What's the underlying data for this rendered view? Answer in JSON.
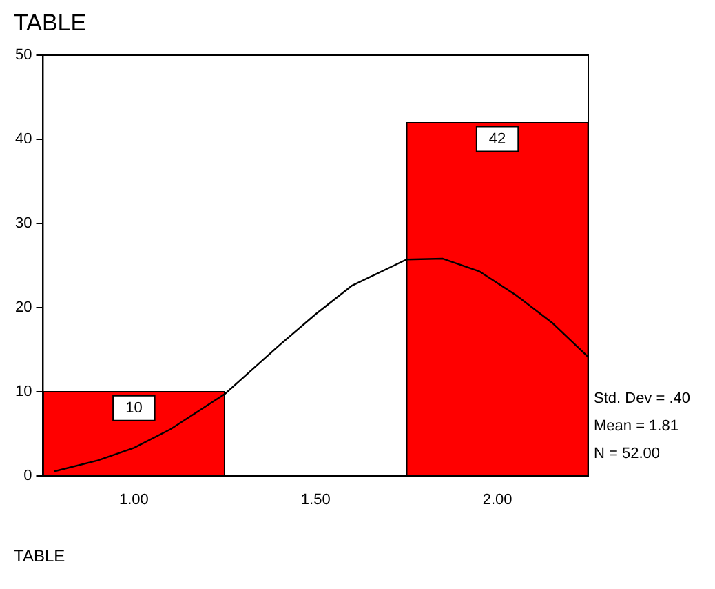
{
  "chart_data": {
    "type": "histogram",
    "title": "TABLE",
    "xlabel": "TABLE",
    "bins": [
      0.75,
      1.25,
      1.75,
      2.25
    ],
    "values": [
      10,
      0,
      42
    ],
    "color": "#ff0000",
    "value_labels": [
      "10",
      null,
      "42"
    ],
    "series": [
      {
        "type": "line",
        "x": [
          0.78,
          0.9,
          1.0,
          1.1,
          1.25,
          1.4,
          1.5,
          1.6,
          1.75,
          1.85,
          1.95,
          2.05,
          2.15,
          2.25
        ],
        "values": [
          0.5,
          1.8,
          3.3,
          5.5,
          9.7,
          15.5,
          19.2,
          22.6,
          25.7,
          25.8,
          24.3,
          21.5,
          18.2,
          14.1
        ],
        "color": "#000000"
      }
    ],
    "annotations": [
      "Std. Dev = .40",
      "Mean = 1.81",
      "N = 52.00"
    ],
    "xlim": [
      0.75,
      2.25
    ],
    "xticks": [
      {
        "value": 1,
        "label": "1.00"
      },
      {
        "value": 1.5,
        "label": "1.50"
      },
      {
        "value": 2,
        "label": "2.00"
      }
    ],
    "ylim": [
      0,
      50
    ],
    "yticks": [
      0,
      10,
      20,
      30,
      40,
      50
    ],
    "grid": false,
    "legend": false,
    "marker": "none",
    "line_style": "solid"
  }
}
